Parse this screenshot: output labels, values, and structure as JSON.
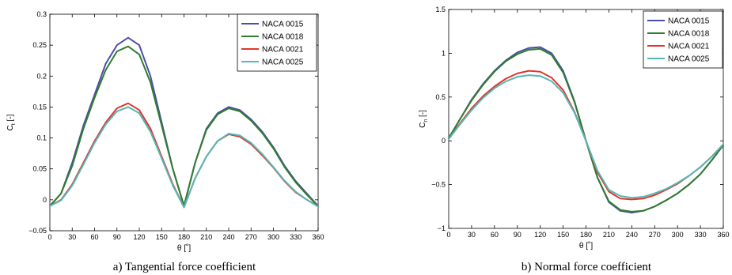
{
  "chart_data": [
    {
      "type": "line",
      "caption": "a) Tangential force coefficient",
      "xlabel": "θ [˚]",
      "ylabel": "C",
      "ylabel_sub": "t",
      "ylabel_unit": " [-]",
      "xlim": [
        0,
        360
      ],
      "ylim": [
        -0.05,
        0.3
      ],
      "xticks": [
        0,
        30,
        60,
        90,
        120,
        150,
        180,
        210,
        240,
        270,
        300,
        330,
        360
      ],
      "yticks": [
        -0.05,
        0,
        0.05,
        0.1,
        0.15,
        0.2,
        0.25,
        0.3
      ],
      "ytick_labels": [
        "−0.05",
        "0",
        "0.05",
        "0.1",
        "0.15",
        "0.2",
        "0.25",
        "0.3"
      ],
      "grid": false,
      "legend_position": "top-right",
      "x": [
        0,
        15,
        30,
        45,
        60,
        75,
        90,
        105,
        120,
        135,
        150,
        165,
        180,
        195,
        210,
        225,
        240,
        255,
        270,
        285,
        300,
        315,
        330,
        345,
        360
      ],
      "series": [
        {
          "name": "NACA 0015",
          "color": "#4b4fa6",
          "values": [
            -0.01,
            0.01,
            0.06,
            0.12,
            0.17,
            0.22,
            0.25,
            0.262,
            0.25,
            0.2,
            0.125,
            0.05,
            -0.01,
            0.06,
            0.115,
            0.14,
            0.15,
            0.145,
            0.13,
            0.11,
            0.085,
            0.055,
            0.03,
            0.01,
            -0.01
          ]
        },
        {
          "name": "NACA 0018",
          "color": "#2f7d2f",
          "values": [
            -0.01,
            0.01,
            0.055,
            0.115,
            0.165,
            0.21,
            0.24,
            0.248,
            0.235,
            0.19,
            0.12,
            0.05,
            -0.01,
            0.06,
            0.113,
            0.138,
            0.148,
            0.143,
            0.128,
            0.108,
            0.083,
            0.053,
            0.028,
            0.008,
            -0.01
          ]
        },
        {
          "name": "NACA 0021",
          "color": "#e2352b",
          "values": [
            -0.01,
            0.0,
            0.025,
            0.06,
            0.095,
            0.125,
            0.148,
            0.156,
            0.145,
            0.115,
            0.07,
            0.025,
            -0.012,
            0.035,
            0.07,
            0.095,
            0.106,
            0.102,
            0.09,
            0.072,
            0.052,
            0.03,
            0.012,
            0.0,
            -0.01
          ]
        },
        {
          "name": "NACA 0025",
          "color": "#55b7b7",
          "values": [
            -0.01,
            -0.001,
            0.023,
            0.057,
            0.092,
            0.122,
            0.143,
            0.15,
            0.14,
            0.11,
            0.067,
            0.023,
            -0.012,
            0.035,
            0.07,
            0.095,
            0.107,
            0.104,
            0.092,
            0.074,
            0.053,
            0.031,
            0.013,
            0.0,
            -0.011
          ]
        }
      ]
    },
    {
      "type": "line",
      "caption": "b) Normal force coefficient",
      "xlabel": "θ [˚]",
      "ylabel": "C",
      "ylabel_sub": "n",
      "ylabel_unit": " [-]",
      "xlim": [
        0,
        360
      ],
      "ylim": [
        -1,
        1.5
      ],
      "xticks": [
        0,
        30,
        60,
        90,
        120,
        150,
        180,
        210,
        240,
        270,
        300,
        330,
        360
      ],
      "yticks": [
        -1,
        -0.5,
        0,
        0.5,
        1,
        1.5
      ],
      "ytick_labels": [
        "−1",
        "−0.5",
        "0",
        "0.5",
        "1",
        "1.5"
      ],
      "grid": false,
      "legend_position": "top-right",
      "x": [
        0,
        15,
        30,
        45,
        60,
        75,
        90,
        105,
        120,
        135,
        150,
        165,
        180,
        195,
        210,
        225,
        240,
        255,
        270,
        285,
        300,
        315,
        330,
        345,
        360
      ],
      "series": [
        {
          "name": "NACA 0015",
          "color": "#4b4fa6",
          "values": [
            0.03,
            0.25,
            0.47,
            0.65,
            0.8,
            0.92,
            1.01,
            1.06,
            1.07,
            1.0,
            0.8,
            0.45,
            0.0,
            -0.42,
            -0.7,
            -0.8,
            -0.82,
            -0.8,
            -0.75,
            -0.68,
            -0.6,
            -0.5,
            -0.38,
            -0.22,
            -0.05
          ]
        },
        {
          "name": "NACA 0018",
          "color": "#2f7d2f",
          "values": [
            0.03,
            0.25,
            0.46,
            0.64,
            0.79,
            0.91,
            0.99,
            1.04,
            1.05,
            0.98,
            0.78,
            0.44,
            0.0,
            -0.42,
            -0.69,
            -0.79,
            -0.81,
            -0.8,
            -0.75,
            -0.68,
            -0.6,
            -0.5,
            -0.38,
            -0.22,
            -0.05
          ]
        },
        {
          "name": "NACA 0021",
          "color": "#e2352b",
          "values": [
            0.02,
            0.2,
            0.37,
            0.51,
            0.62,
            0.71,
            0.77,
            0.8,
            0.79,
            0.72,
            0.58,
            0.33,
            0.0,
            -0.36,
            -0.58,
            -0.66,
            -0.67,
            -0.66,
            -0.62,
            -0.56,
            -0.49,
            -0.4,
            -0.3,
            -0.18,
            -0.04
          ]
        },
        {
          "name": "NACA 0025",
          "color": "#55b7b7",
          "values": [
            0.02,
            0.19,
            0.35,
            0.49,
            0.6,
            0.68,
            0.73,
            0.75,
            0.74,
            0.68,
            0.55,
            0.32,
            0.0,
            -0.34,
            -0.56,
            -0.63,
            -0.65,
            -0.64,
            -0.6,
            -0.55,
            -0.48,
            -0.4,
            -0.3,
            -0.18,
            -0.04
          ]
        }
      ]
    }
  ]
}
